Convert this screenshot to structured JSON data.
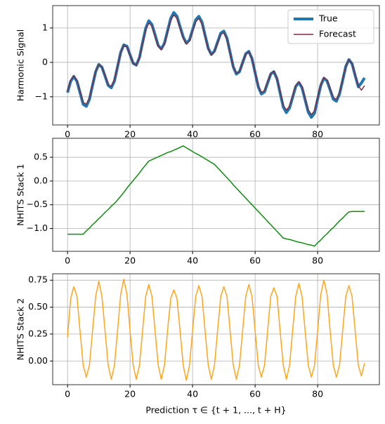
{
  "chart_data": [
    {
      "type": "line",
      "ylabel": "Harmonic Signal",
      "legend": "upper right",
      "grid": true,
      "x": [
        0,
        1,
        2,
        3,
        4,
        5,
        6,
        7,
        8,
        9,
        10,
        11,
        12,
        13,
        14,
        15,
        16,
        17,
        18,
        19,
        20,
        21,
        22,
        23,
        24,
        25,
        26,
        27,
        28,
        29,
        30,
        31,
        32,
        33,
        34,
        35,
        36,
        37,
        38,
        39,
        40,
        41,
        42,
        43,
        44,
        45,
        46,
        47,
        48,
        49,
        50,
        51,
        52,
        53,
        54,
        55,
        56,
        57,
        58,
        59,
        60,
        61,
        62,
        63,
        64,
        65,
        66,
        67,
        68,
        69,
        70,
        71,
        72,
        73,
        74,
        75,
        76,
        77,
        78,
        79,
        80,
        81,
        82,
        83,
        84,
        85,
        86,
        87,
        88,
        89,
        90,
        91,
        92,
        93,
        94,
        95
      ],
      "series": [
        {
          "name": "True",
          "color": "#1f77b4",
          "values": [
            -0.88,
            -0.55,
            -0.41,
            -0.55,
            -0.88,
            -1.22,
            -1.28,
            -1.08,
            -0.67,
            -0.27,
            -0.06,
            -0.14,
            -0.4,
            -0.67,
            -0.74,
            -0.54,
            -0.13,
            0.29,
            0.51,
            0.47,
            0.22,
            -0.03,
            -0.08,
            0.14,
            0.57,
            0.99,
            1.21,
            1.1,
            0.8,
            0.49,
            0.39,
            0.56,
            0.92,
            1.28,
            1.45,
            1.34,
            1.04,
            0.74,
            0.56,
            0.65,
            0.95,
            1.24,
            1.34,
            1.17,
            0.79,
            0.41,
            0.23,
            0.33,
            0.59,
            0.85,
            0.91,
            0.7,
            0.29,
            -0.13,
            -0.34,
            -0.27,
            -0.01,
            0.25,
            0.32,
            0.11,
            -0.3,
            -0.71,
            -0.92,
            -0.86,
            -0.6,
            -0.34,
            -0.27,
            -0.48,
            -0.89,
            -1.3,
            -1.46,
            -1.33,
            -1.02,
            -0.7,
            -0.59,
            -0.74,
            -1.09,
            -1.45,
            -1.6,
            -1.48,
            -1.07,
            -0.67,
            -0.46,
            -0.54,
            -0.8,
            -1.07,
            -1.13,
            -0.92,
            -0.53,
            -0.12,
            0.08,
            -0.04,
            -0.38,
            -0.71,
            -0.6,
            -0.45
          ]
        },
        {
          "name": "Forecast",
          "color": "#7f2f3f",
          "values": [
            -0.84,
            -0.52,
            -0.39,
            -0.52,
            -0.84,
            -1.16,
            -1.22,
            -1.03,
            -0.64,
            -0.26,
            -0.06,
            -0.13,
            -0.38,
            -0.64,
            -0.7,
            -0.51,
            -0.12,
            0.28,
            0.49,
            0.45,
            0.21,
            -0.03,
            -0.08,
            0.13,
            0.54,
            0.94,
            1.15,
            1.05,
            0.76,
            0.47,
            0.37,
            0.53,
            0.88,
            1.22,
            1.38,
            1.28,
            0.99,
            0.7,
            0.53,
            0.62,
            0.9,
            1.18,
            1.28,
            1.11,
            0.75,
            0.39,
            0.22,
            0.31,
            0.56,
            0.81,
            0.87,
            0.67,
            0.28,
            -0.12,
            -0.32,
            -0.26,
            -0.01,
            0.24,
            0.3,
            0.1,
            -0.29,
            -0.68,
            -0.88,
            -0.82,
            -0.57,
            -0.32,
            -0.26,
            -0.46,
            -0.85,
            -1.24,
            -1.39,
            -1.27,
            -0.97,
            -0.67,
            -0.56,
            -0.7,
            -1.04,
            -1.38,
            -1.52,
            -1.41,
            -1.02,
            -0.64,
            -0.44,
            -0.51,
            -0.76,
            -1.02,
            -1.08,
            -0.88,
            -0.5,
            -0.11,
            0.08,
            -0.04,
            -0.36,
            -0.68,
            -0.81,
            -0.68
          ]
        }
      ],
      "xlim": [
        -4.75,
        99.75
      ],
      "xticks": [
        0,
        20,
        40,
        60,
        80
      ],
      "ylim": [
        -1.82,
        1.65
      ],
      "yticks": [
        {
          "value": -1,
          "label": "−1"
        },
        0,
        1
      ]
    },
    {
      "type": "line",
      "ylabel": "NHITS Stack 1",
      "grid": true,
      "x": [
        0,
        1,
        2,
        3,
        4,
        5,
        6,
        7,
        8,
        9,
        10,
        11,
        12,
        13,
        14,
        15,
        16,
        17,
        18,
        19,
        20,
        21,
        22,
        23,
        24,
        25,
        26,
        27,
        28,
        29,
        30,
        31,
        32,
        33,
        34,
        35,
        36,
        37,
        38,
        39,
        40,
        41,
        42,
        43,
        44,
        45,
        46,
        47,
        48,
        49,
        50,
        51,
        52,
        53,
        54,
        55,
        56,
        57,
        58,
        59,
        60,
        61,
        62,
        63,
        64,
        65,
        66,
        67,
        68,
        69,
        70,
        71,
        72,
        73,
        74,
        75,
        76,
        77,
        78,
        79,
        80,
        81,
        82,
        83,
        84,
        85,
        86,
        87,
        88,
        89,
        90,
        91,
        92,
        93,
        94,
        95
      ],
      "series": [
        {
          "color": "#138a13",
          "values": [
            -1.12,
            -1.12,
            -1.12,
            -1.12,
            -1.12,
            -1.12,
            -1.05,
            -0.99,
            -0.92,
            -0.86,
            -0.79,
            -0.73,
            -0.66,
            -0.6,
            -0.53,
            -0.47,
            -0.4,
            -0.32,
            -0.24,
            -0.15,
            -0.07,
            0.01,
            0.09,
            0.17,
            0.26,
            0.34,
            0.42,
            0.45,
            0.48,
            0.51,
            0.54,
            0.57,
            0.6,
            0.62,
            0.65,
            0.68,
            0.71,
            0.74,
            0.7,
            0.66,
            0.62,
            0.58,
            0.55,
            0.51,
            0.47,
            0.43,
            0.39,
            0.35,
            0.28,
            0.21,
            0.14,
            0.07,
            0.0,
            -0.08,
            -0.15,
            -0.22,
            -0.29,
            -0.36,
            -0.43,
            -0.5,
            -0.57,
            -0.64,
            -0.71,
            -0.78,
            -0.85,
            -0.92,
            -0.99,
            -1.06,
            -1.13,
            -1.2,
            -1.22,
            -1.23,
            -1.25,
            -1.27,
            -1.29,
            -1.3,
            -1.32,
            -1.34,
            -1.35,
            -1.37,
            -1.3,
            -1.24,
            -1.17,
            -1.11,
            -1.04,
            -0.98,
            -0.91,
            -0.84,
            -0.78,
            -0.71,
            -0.65,
            -0.64,
            -0.64,
            -0.64,
            -0.64,
            -0.64
          ]
        }
      ],
      "xlim": [
        -4.75,
        99.75
      ],
      "xticks": [
        0,
        20,
        40,
        60,
        80
      ],
      "ylim": [
        -1.48,
        0.9
      ],
      "yticks": [
        {
          "value": -1,
          "label": "−1.0"
        },
        {
          "value": -0.5,
          "label": "−0.5"
        },
        {
          "value": 0,
          "label": "0.0"
        },
        0.5
      ]
    },
    {
      "type": "line",
      "ylabel": "NHITS Stack 2",
      "xlabel": "Prediction τ ∈ {t + 1, ..., t + H}",
      "grid": true,
      "x": [
        0,
        1,
        2,
        3,
        4,
        5,
        6,
        7,
        8,
        9,
        10,
        11,
        12,
        13,
        14,
        15,
        16,
        17,
        18,
        19,
        20,
        21,
        22,
        23,
        24,
        25,
        26,
        27,
        28,
        29,
        30,
        31,
        32,
        33,
        34,
        35,
        36,
        37,
        38,
        39,
        40,
        41,
        42,
        43,
        44,
        45,
        46,
        47,
        48,
        49,
        50,
        51,
        52,
        53,
        54,
        55,
        56,
        57,
        58,
        59,
        60,
        61,
        62,
        63,
        64,
        65,
        66,
        67,
        68,
        69,
        70,
        71,
        72,
        73,
        74,
        75,
        76,
        77,
        78,
        79,
        80,
        81,
        82,
        83,
        84,
        85,
        86,
        87,
        88,
        89,
        90,
        91,
        92,
        93,
        94,
        95
      ],
      "series": [
        {
          "color": "#ffa51a",
          "values": [
            0.22,
            0.58,
            0.69,
            0.6,
            0.28,
            -0.04,
            -0.15,
            -0.04,
            0.28,
            0.6,
            0.74,
            0.6,
            0.28,
            -0.04,
            -0.17,
            -0.04,
            0.28,
            0.62,
            0.76,
            0.62,
            0.28,
            -0.04,
            -0.17,
            -0.04,
            0.28,
            0.6,
            0.71,
            0.6,
            0.28,
            -0.04,
            -0.17,
            -0.04,
            0.28,
            0.58,
            0.66,
            0.58,
            0.28,
            -0.04,
            -0.18,
            -0.04,
            0.28,
            0.6,
            0.7,
            0.6,
            0.28,
            -0.04,
            -0.17,
            -0.04,
            0.28,
            0.6,
            0.69,
            0.6,
            0.28,
            -0.04,
            -0.17,
            -0.04,
            0.28,
            0.6,
            0.71,
            0.6,
            0.28,
            -0.04,
            -0.15,
            -0.04,
            0.28,
            0.6,
            0.68,
            0.6,
            0.28,
            -0.04,
            -0.17,
            -0.04,
            0.28,
            0.6,
            0.72,
            0.6,
            0.28,
            -0.04,
            -0.15,
            -0.04,
            0.28,
            0.62,
            0.75,
            0.62,
            0.28,
            -0.04,
            -0.15,
            -0.04,
            0.28,
            0.6,
            0.7,
            0.6,
            0.28,
            -0.04,
            -0.14,
            -0.02
          ]
        }
      ],
      "xlim": [
        -4.75,
        99.75
      ],
      "xticks": [
        0,
        20,
        40,
        60,
        80
      ],
      "ylim": [
        -0.22,
        0.81
      ],
      "yticks": [
        {
          "value": 0,
          "label": "0.00"
        },
        0.25,
        {
          "value": 0.5,
          "label": "0.50"
        },
        0.75
      ]
    }
  ]
}
